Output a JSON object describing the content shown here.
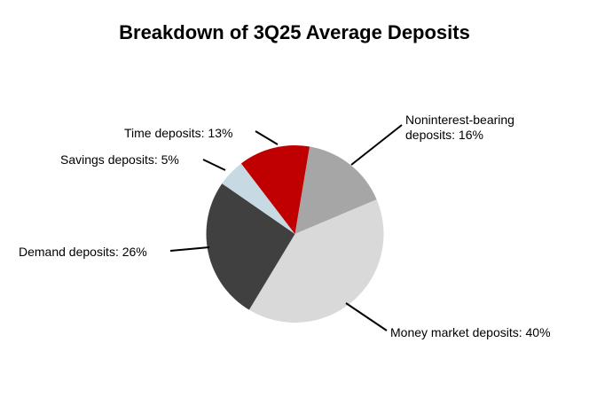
{
  "chart_data": {
    "type": "pie",
    "title": "Breakdown of 3Q25 Average Deposits",
    "categories": [
      "Noninterest-bearing deposits",
      "Money market deposits",
      "Demand deposits",
      "Savings deposits",
      "Time deposits"
    ],
    "values": [
      16,
      40,
      26,
      5,
      13
    ],
    "unit": "%",
    "colors": [
      "#A6A6A6",
      "#D9D9D9",
      "#404040",
      "#C7DAE4",
      "#C00000"
    ],
    "labels": [
      "Noninterest-bearing deposits: 16%",
      "Money market deposits: 40%",
      "Demand deposits: 26%",
      "Savings deposits: 5%",
      "Time deposits: 13%"
    ],
    "start_angle_deg": 9.5,
    "direction": "clockwise",
    "legend_position": "none",
    "label_style": "leader-line callouts",
    "leader_line_color": "#000000",
    "title_color": "#000000"
  }
}
